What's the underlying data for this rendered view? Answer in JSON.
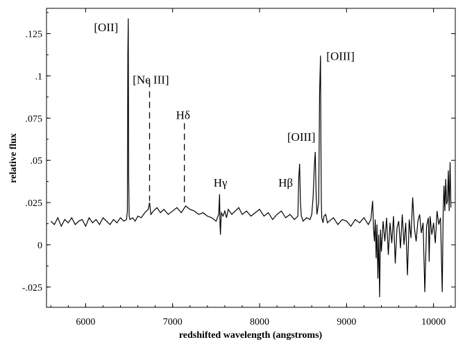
{
  "chart_data": {
    "type": "line",
    "title": "",
    "xlabel": "redshifted wavelength (angstroms)",
    "ylabel": "relative flux",
    "xlim": [
      5550,
      10250
    ],
    "ylim": [
      -0.037,
      0.14
    ],
    "x_ticks": [
      6000,
      7000,
      8000,
      9000,
      10000
    ],
    "x_tick_labels": [
      "6000",
      "7000",
      "8000",
      "9000",
      "10000"
    ],
    "y_ticks": [
      -0.025,
      0,
      0.025,
      0.05,
      0.075,
      0.1,
      0.125
    ],
    "y_tick_labels": [
      "-.025",
      "0",
      ".025",
      ".05",
      ".075",
      ".1",
      ".125"
    ],
    "grid": false,
    "legend": "none",
    "line_color": "#000000",
    "series": [
      {
        "x": [
          5600,
          5640,
          5680,
          5720,
          5760,
          5800,
          5840,
          5880,
          5920,
          5960,
          6000,
          6040,
          6080,
          6120,
          6160,
          6200,
          6240,
          6280,
          6320,
          6360,
          6400,
          6440,
          6470,
          6480,
          6485,
          6490,
          6495,
          6500,
          6510,
          6540,
          6570,
          6600,
          6640,
          6680,
          6720,
          6735,
          6750,
          6780,
          6820,
          6860,
          6900,
          6950,
          7000,
          7050,
          7100,
          7150,
          7200,
          7250,
          7300,
          7350,
          7400,
          7450,
          7500,
          7530,
          7540,
          7545,
          7550,
          7555,
          7560,
          7580,
          7600,
          7620,
          7640,
          7680,
          7720,
          7760,
          7800,
          7850,
          7900,
          7950,
          8000,
          8050,
          8100,
          8150,
          8200,
          8250,
          8300,
          8350,
          8400,
          8440,
          8450,
          8460,
          8470,
          8480,
          8500,
          8540,
          8580,
          8600,
          8615,
          8630,
          8640,
          8650,
          8660,
          8680,
          8690,
          8700,
          8705,
          8710,
          8715,
          8720,
          8730,
          8740,
          8760,
          8780,
          8800,
          8850,
          8900,
          8950,
          9000,
          9050,
          9100,
          9150,
          9200,
          9250,
          9280,
          9300,
          9310,
          9320,
          9330,
          9340,
          9350,
          9360,
          9370,
          9380,
          9390,
          9400,
          9420,
          9440,
          9460,
          9480,
          9500,
          9520,
          9540,
          9560,
          9580,
          9600,
          9620,
          9640,
          9660,
          9680,
          9700,
          9720,
          9740,
          9760,
          9780,
          9800,
          9820,
          9840,
          9860,
          9880,
          9900,
          9920,
          9940,
          9950,
          9960,
          9980,
          10000,
          10020,
          10040,
          10060,
          10080,
          10100,
          10110,
          10120,
          10130,
          10140,
          10150,
          10160,
          10170,
          10180,
          10190,
          10200
        ],
        "y": [
          0.014,
          0.012,
          0.016,
          0.011,
          0.015,
          0.013,
          0.016,
          0.012,
          0.014,
          0.015,
          0.011,
          0.016,
          0.013,
          0.015,
          0.012,
          0.016,
          0.014,
          0.012,
          0.015,
          0.013,
          0.016,
          0.014,
          0.015,
          0.02,
          0.113,
          0.134,
          0.04,
          0.017,
          0.015,
          0.016,
          0.014,
          0.017,
          0.016,
          0.019,
          0.021,
          0.025,
          0.018,
          0.02,
          0.022,
          0.019,
          0.021,
          0.018,
          0.02,
          0.022,
          0.019,
          0.023,
          0.021,
          0.02,
          0.018,
          0.019,
          0.017,
          0.016,
          0.014,
          0.018,
          0.03,
          0.012,
          0.006,
          0.014,
          0.019,
          0.017,
          0.02,
          0.016,
          0.021,
          0.018,
          0.02,
          0.022,
          0.018,
          0.02,
          0.017,
          0.019,
          0.021,
          0.017,
          0.019,
          0.015,
          0.018,
          0.02,
          0.016,
          0.018,
          0.015,
          0.017,
          0.039,
          0.048,
          0.025,
          0.017,
          0.014,
          0.016,
          0.015,
          0.018,
          0.028,
          0.047,
          0.055,
          0.03,
          0.018,
          0.025,
          0.09,
          0.112,
          0.06,
          0.025,
          0.016,
          0.015,
          0.013,
          0.017,
          0.018,
          0.013,
          0.014,
          0.016,
          0.012,
          0.015,
          0.014,
          0.011,
          0.015,
          0.013,
          0.016,
          0.012,
          0.015,
          0.026,
          0.01,
          0.002,
          0.015,
          -0.008,
          0.012,
          -0.02,
          0.006,
          -0.031,
          0.009,
          -0.004,
          0.014,
          0.002,
          0.016,
          -0.006,
          0.013,
          0.001,
          0.017,
          -0.011,
          0.01,
          0.014,
          -0.002,
          0.018,
          0.0,
          0.013,
          -0.018,
          0.015,
          0.004,
          0.028,
          0.01,
          0.002,
          0.014,
          0.018,
          0.007,
          0.013,
          -0.028,
          0.011,
          0.016,
          -0.01,
          0.017,
          0.006,
          0.013,
          0.001,
          0.02,
          0.012,
          0.016,
          -0.028,
          0.018,
          0.035,
          0.02,
          0.039,
          0.024,
          0.026,
          0.044,
          0.02,
          0.049,
          0.022
        ]
      }
    ],
    "annotations": [
      {
        "text": "[OII]",
        "x": 6235,
        "y": 0.1265
      },
      {
        "text": "[Ne III]",
        "x": 6750,
        "y": 0.0955
      },
      {
        "text": "Hδ",
        "x": 7120,
        "y": 0.0745
      },
      {
        "text": "Hγ",
        "x": 7550,
        "y": 0.0345
      },
      {
        "text": "Hβ",
        "x": 8300,
        "y": 0.0345
      },
      {
        "text": "[OIII]",
        "x": 8480,
        "y": 0.0615
      },
      {
        "text": "[OIII]",
        "x": 8930,
        "y": 0.1095
      }
    ],
    "markers": [
      {
        "x": 6735,
        "y_from": 0.097,
        "y_to": 0.026,
        "style": "dashed"
      },
      {
        "x": 7135,
        "y_from": 0.072,
        "y_to": 0.024,
        "style": "dashed"
      }
    ]
  }
}
